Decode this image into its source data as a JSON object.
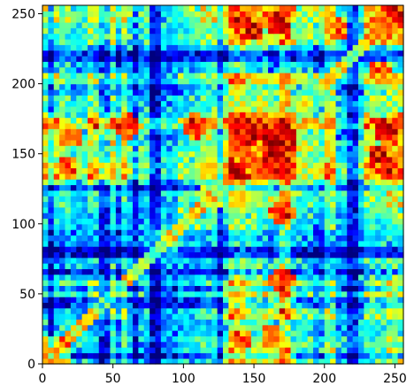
{
  "chart_data": {
    "type": "heatmap",
    "title": "",
    "xlabel": "",
    "ylabel": "",
    "xlim": [
      0,
      256
    ],
    "ylim": [
      0,
      256
    ],
    "x_ticks": [
      "0",
      "50",
      "100",
      "150",
      "200",
      "250"
    ],
    "y_ticks": [
      "0",
      "50",
      "100",
      "150",
      "200",
      "250"
    ],
    "x_tick_values": [
      0,
      50,
      100,
      150,
      200,
      250
    ],
    "y_tick_values": [
      0,
      50,
      100,
      150,
      200,
      250
    ],
    "colormap": "jet",
    "colormap_stops": [
      "#00007f",
      "#0000ff",
      "#007fff",
      "#00ffff",
      "#7fff7f",
      "#ffff00",
      "#ff7f00",
      "#ff0000",
      "#7f0000"
    ],
    "symmetric": true,
    "grid_size": 64,
    "block_boundaries": [
      0,
      12,
      22,
      34,
      48,
      62,
      76,
      96,
      112,
      128,
      146,
      160,
      180,
      194,
      210,
      228,
      244,
      256
    ],
    "block_intensity": [
      [
        0.8,
        0.62,
        0.35,
        0.3,
        0.45,
        0.3,
        0.28,
        0.35,
        0.4,
        0.7,
        0.55,
        0.78,
        0.45,
        0.55,
        0.35,
        0.45,
        0.55
      ],
      [
        0.62,
        0.72,
        0.38,
        0.32,
        0.45,
        0.3,
        0.28,
        0.35,
        0.4,
        0.6,
        0.55,
        0.65,
        0.45,
        0.5,
        0.35,
        0.45,
        0.5
      ],
      [
        0.35,
        0.38,
        0.45,
        0.35,
        0.38,
        0.3,
        0.28,
        0.32,
        0.35,
        0.5,
        0.45,
        0.55,
        0.4,
        0.45,
        0.3,
        0.4,
        0.45
      ],
      [
        0.3,
        0.32,
        0.35,
        0.45,
        0.55,
        0.35,
        0.3,
        0.35,
        0.4,
        0.72,
        0.55,
        0.8,
        0.45,
        0.55,
        0.35,
        0.55,
        0.6
      ],
      [
        0.45,
        0.45,
        0.38,
        0.55,
        0.6,
        0.4,
        0.3,
        0.35,
        0.45,
        0.72,
        0.6,
        0.75,
        0.45,
        0.55,
        0.35,
        0.55,
        0.6
      ],
      [
        0.3,
        0.3,
        0.3,
        0.35,
        0.4,
        0.4,
        0.3,
        0.3,
        0.35,
        0.5,
        0.45,
        0.55,
        0.38,
        0.42,
        0.3,
        0.4,
        0.45
      ],
      [
        0.28,
        0.28,
        0.28,
        0.3,
        0.3,
        0.3,
        0.45,
        0.32,
        0.32,
        0.4,
        0.35,
        0.45,
        0.3,
        0.35,
        0.25,
        0.35,
        0.35
      ],
      [
        0.35,
        0.35,
        0.32,
        0.35,
        0.35,
        0.3,
        0.32,
        0.5,
        0.42,
        0.55,
        0.45,
        0.55,
        0.38,
        0.45,
        0.3,
        0.45,
        0.5
      ],
      [
        0.4,
        0.4,
        0.35,
        0.4,
        0.45,
        0.35,
        0.32,
        0.42,
        0.65,
        0.65,
        0.55,
        0.7,
        0.45,
        0.55,
        0.35,
        0.5,
        0.6
      ],
      [
        0.7,
        0.6,
        0.5,
        0.72,
        0.72,
        0.5,
        0.4,
        0.55,
        0.65,
        0.92,
        0.8,
        0.92,
        0.6,
        0.75,
        0.45,
        0.72,
        0.8
      ],
      [
        0.55,
        0.55,
        0.45,
        0.55,
        0.6,
        0.45,
        0.35,
        0.45,
        0.55,
        0.8,
        0.72,
        0.85,
        0.55,
        0.65,
        0.4,
        0.6,
        0.72
      ],
      [
        0.78,
        0.65,
        0.55,
        0.8,
        0.75,
        0.55,
        0.45,
        0.55,
        0.7,
        0.92,
        0.85,
        0.95,
        0.65,
        0.8,
        0.45,
        0.75,
        0.85
      ],
      [
        0.45,
        0.45,
        0.4,
        0.45,
        0.45,
        0.38,
        0.3,
        0.38,
        0.45,
        0.6,
        0.55,
        0.65,
        0.55,
        0.55,
        0.35,
        0.5,
        0.55
      ],
      [
        0.55,
        0.5,
        0.45,
        0.55,
        0.55,
        0.42,
        0.35,
        0.45,
        0.55,
        0.75,
        0.65,
        0.8,
        0.55,
        0.72,
        0.4,
        0.65,
        0.7
      ],
      [
        0.35,
        0.35,
        0.3,
        0.35,
        0.35,
        0.3,
        0.25,
        0.3,
        0.35,
        0.45,
        0.4,
        0.45,
        0.35,
        0.4,
        0.4,
        0.35,
        0.4
      ],
      [
        0.45,
        0.45,
        0.4,
        0.55,
        0.55,
        0.4,
        0.35,
        0.45,
        0.5,
        0.72,
        0.6,
        0.75,
        0.5,
        0.65,
        0.35,
        0.7,
        0.72
      ],
      [
        0.55,
        0.5,
        0.45,
        0.6,
        0.6,
        0.45,
        0.35,
        0.5,
        0.6,
        0.8,
        0.72,
        0.85,
        0.55,
        0.7,
        0.4,
        0.72,
        0.85
      ]
    ],
    "low_lines": [
      6,
      44,
      53,
      66,
      80,
      128,
      164,
      178,
      196,
      220
    ],
    "hot_spots": [
      {
        "x": 168,
        "y": 160,
        "size": 14,
        "value": 0.98
      },
      {
        "x": 145,
        "y": 168,
        "size": 12,
        "value": 0.96
      },
      {
        "x": 168,
        "y": 145,
        "size": 12,
        "value": 0.96
      },
      {
        "x": 168,
        "y": 245,
        "size": 10,
        "value": 0.95
      },
      {
        "x": 245,
        "y": 168,
        "size": 10,
        "value": 0.95
      },
      {
        "x": 148,
        "y": 240,
        "size": 10,
        "value": 0.92
      },
      {
        "x": 240,
        "y": 148,
        "size": 10,
        "value": 0.92
      },
      {
        "x": 170,
        "y": 108,
        "size": 10,
        "value": 0.9
      },
      {
        "x": 108,
        "y": 170,
        "size": 10,
        "value": 0.9
      },
      {
        "x": 170,
        "y": 60,
        "size": 9,
        "value": 0.9
      },
      {
        "x": 60,
        "y": 170,
        "size": 9,
        "value": 0.9
      },
      {
        "x": 20,
        "y": 162,
        "size": 8,
        "value": 0.88
      },
      {
        "x": 162,
        "y": 20,
        "size": 8,
        "value": 0.88
      },
      {
        "x": 140,
        "y": 18,
        "size": 8,
        "value": 0.86
      },
      {
        "x": 18,
        "y": 140,
        "size": 8,
        "value": 0.86
      },
      {
        "x": 210,
        "y": 240,
        "size": 8,
        "value": 0.85
      },
      {
        "x": 240,
        "y": 210,
        "size": 8,
        "value": 0.85
      },
      {
        "x": 245,
        "y": 140,
        "size": 8,
        "value": 0.9
      },
      {
        "x": 140,
        "y": 245,
        "size": 8,
        "value": 0.9
      }
    ]
  }
}
